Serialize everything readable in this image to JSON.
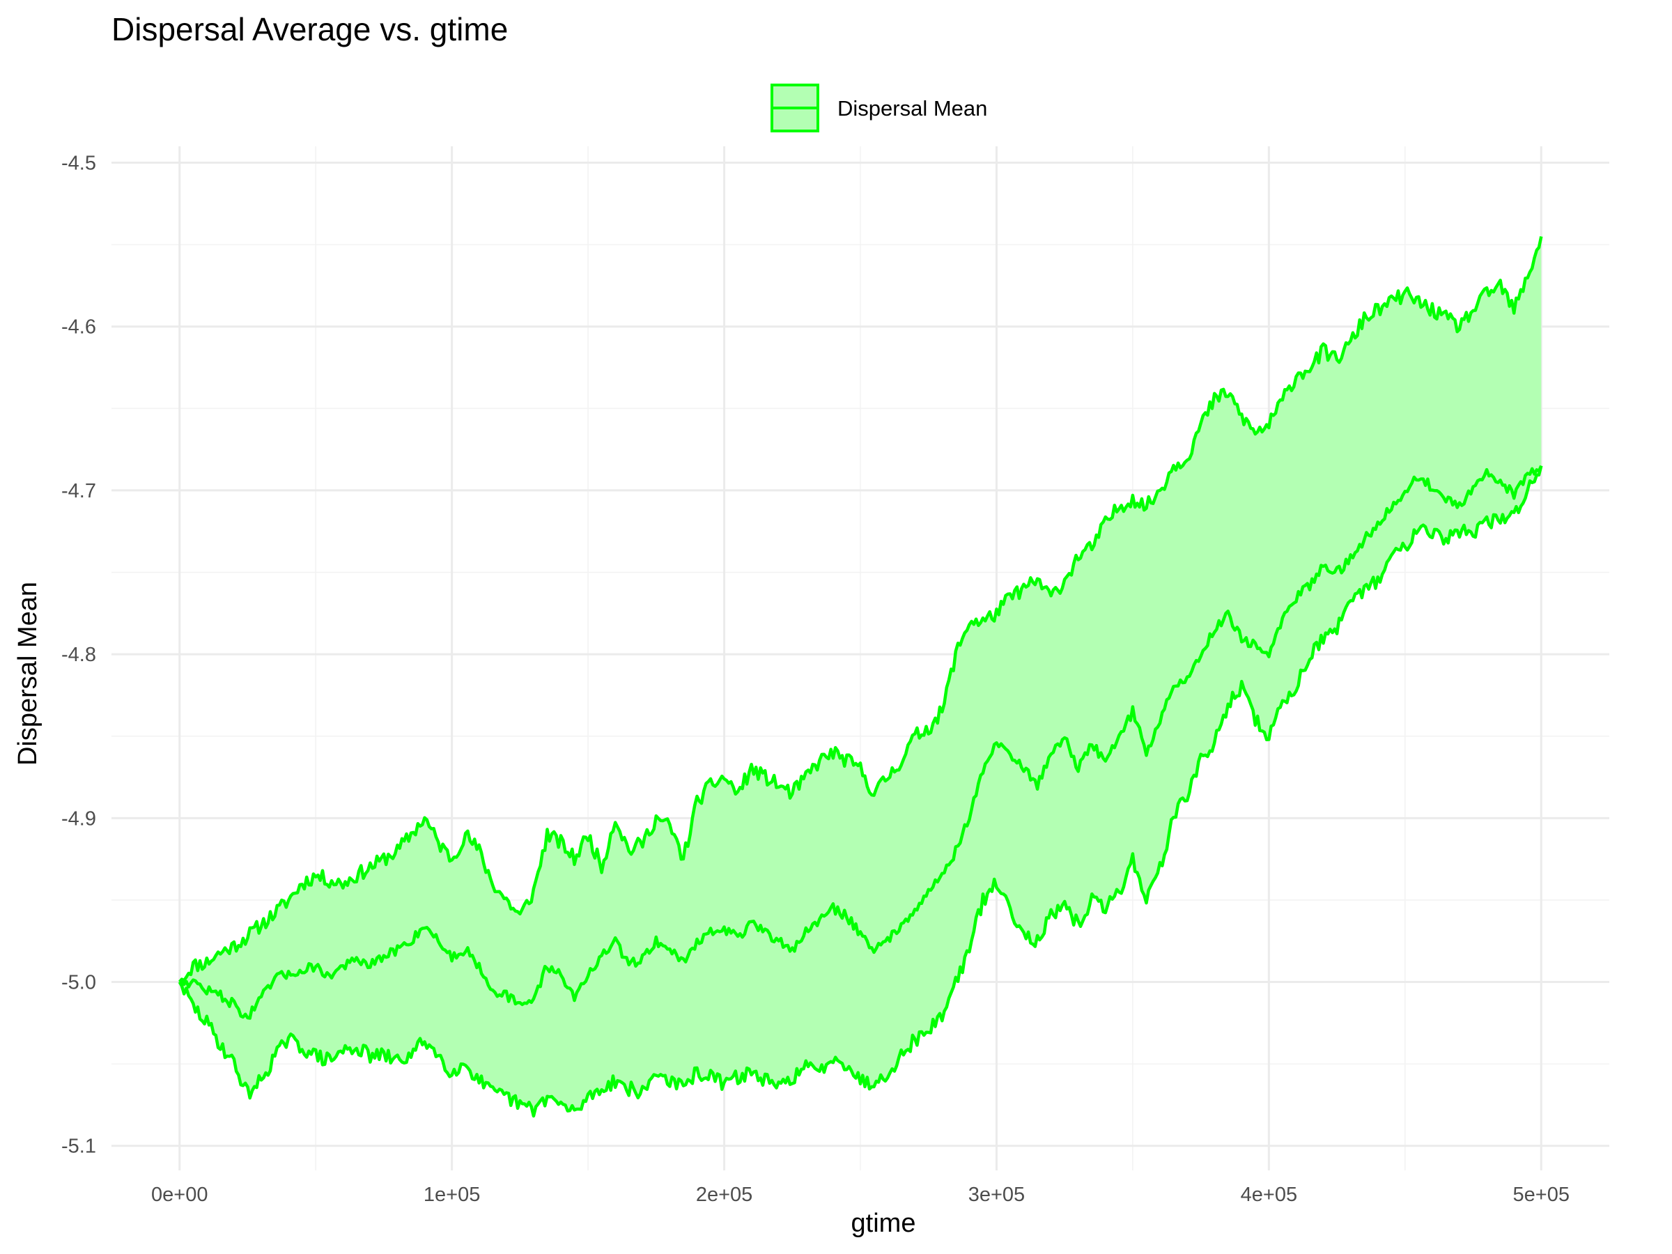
{
  "chart_data": {
    "type": "area",
    "title": "Dispersal Average vs. gtime",
    "xlabel": "gtime",
    "ylabel": "Dispersal Mean",
    "xlim": [
      -25000,
      525000
    ],
    "ylim": [
      -5.115,
      -4.49
    ],
    "x_ticks": [
      0,
      100000,
      200000,
      300000,
      400000,
      500000
    ],
    "x_tick_labels": [
      "0e+00",
      "1e+05",
      "2e+05",
      "3e+05",
      "4e+05",
      "5e+05"
    ],
    "y_ticks": [
      -5.1,
      -5.0,
      -4.9,
      -4.8,
      -4.7,
      -4.6,
      -4.5
    ],
    "y_tick_labels": [
      "-5.1",
      "-5.0",
      "-4.9",
      "-4.8",
      "-4.7",
      "-4.6",
      "-4.5"
    ],
    "grid": true,
    "legend_position": "top",
    "colors": {
      "line": "#00ff00",
      "fill": "#b3ffb3"
    },
    "series": [
      {
        "name": "Dispersal Mean",
        "x": [
          0,
          5000,
          10000,
          15000,
          20000,
          25000,
          30000,
          35000,
          40000,
          45000,
          50000,
          55000,
          60000,
          65000,
          70000,
          75000,
          80000,
          85000,
          90000,
          95000,
          100000,
          105000,
          110000,
          115000,
          120000,
          125000,
          130000,
          135000,
          140000,
          145000,
          150000,
          155000,
          160000,
          165000,
          170000,
          175000,
          180000,
          185000,
          190000,
          195000,
          200000,
          205000,
          210000,
          215000,
          220000,
          225000,
          230000,
          235000,
          240000,
          245000,
          250000,
          255000,
          260000,
          265000,
          270000,
          275000,
          280000,
          285000,
          290000,
          295000,
          300000,
          305000,
          310000,
          315000,
          320000,
          325000,
          330000,
          335000,
          340000,
          345000,
          350000,
          355000,
          360000,
          365000,
          370000,
          375000,
          380000,
          385000,
          390000,
          395000,
          400000,
          405000,
          410000,
          415000,
          420000,
          425000,
          430000,
          435000,
          440000,
          445000,
          450000,
          455000,
          460000,
          465000,
          470000,
          475000,
          480000,
          485000,
          490000,
          495000,
          500000
        ],
        "mean": [
          -5.0,
          -5.0,
          -5.005,
          -5.008,
          -5.014,
          -5.022,
          -5.01,
          -4.998,
          -4.995,
          -4.993,
          -4.99,
          -4.997,
          -4.99,
          -4.987,
          -4.99,
          -4.985,
          -4.98,
          -4.975,
          -4.965,
          -4.975,
          -4.985,
          -4.98,
          -4.99,
          -5.005,
          -5.008,
          -5.015,
          -5.01,
          -4.99,
          -4.995,
          -5.01,
          -4.995,
          -4.985,
          -4.975,
          -4.99,
          -4.985,
          -4.975,
          -4.98,
          -4.988,
          -4.975,
          -4.97,
          -4.968,
          -4.972,
          -4.965,
          -4.97,
          -4.975,
          -4.98,
          -4.97,
          -4.962,
          -4.955,
          -4.96,
          -4.97,
          -4.98,
          -4.975,
          -4.965,
          -4.955,
          -4.945,
          -4.935,
          -4.92,
          -4.9,
          -4.87,
          -4.855,
          -4.86,
          -4.87,
          -4.88,
          -4.86,
          -4.85,
          -4.87,
          -4.855,
          -4.865,
          -4.85,
          -4.835,
          -4.86,
          -4.84,
          -4.82,
          -4.815,
          -4.8,
          -4.785,
          -4.775,
          -4.79,
          -4.795,
          -4.8,
          -4.78,
          -4.765,
          -4.758,
          -4.745,
          -4.75,
          -4.742,
          -4.73,
          -4.72,
          -4.71,
          -4.7,
          -4.692,
          -4.698,
          -4.705,
          -4.71,
          -4.7,
          -4.69,
          -4.695,
          -4.702,
          -4.69,
          -4.685
        ],
        "upper": [
          -5.0,
          -4.99,
          -4.988,
          -4.982,
          -4.978,
          -4.972,
          -4.965,
          -4.958,
          -4.95,
          -4.94,
          -4.935,
          -4.938,
          -4.94,
          -4.935,
          -4.93,
          -4.925,
          -4.92,
          -4.91,
          -4.9,
          -4.915,
          -4.925,
          -4.91,
          -4.92,
          -4.94,
          -4.95,
          -4.96,
          -4.945,
          -4.91,
          -4.915,
          -4.925,
          -4.91,
          -4.93,
          -4.9,
          -4.92,
          -4.915,
          -4.9,
          -4.905,
          -4.925,
          -4.89,
          -4.88,
          -4.875,
          -4.885,
          -4.87,
          -4.875,
          -4.88,
          -4.885,
          -4.875,
          -4.865,
          -4.86,
          -4.865,
          -4.87,
          -4.885,
          -4.875,
          -4.865,
          -4.85,
          -4.845,
          -4.835,
          -4.8,
          -4.78,
          -4.78,
          -4.775,
          -4.765,
          -4.76,
          -4.755,
          -4.765,
          -4.755,
          -4.74,
          -4.735,
          -4.72,
          -4.71,
          -4.705,
          -4.71,
          -4.7,
          -4.685,
          -4.68,
          -4.66,
          -4.645,
          -4.64,
          -4.655,
          -4.665,
          -4.66,
          -4.645,
          -4.63,
          -4.625,
          -4.615,
          -4.62,
          -4.61,
          -4.595,
          -4.59,
          -4.585,
          -4.58,
          -4.585,
          -4.59,
          -4.595,
          -4.6,
          -4.59,
          -4.58,
          -4.575,
          -4.59,
          -4.57,
          -4.545
        ],
        "lower": [
          -5.0,
          -5.015,
          -5.025,
          -5.038,
          -5.05,
          -5.068,
          -5.06,
          -5.045,
          -5.035,
          -5.04,
          -5.045,
          -5.048,
          -5.042,
          -5.04,
          -5.045,
          -5.045,
          -5.048,
          -5.045,
          -5.035,
          -5.045,
          -5.055,
          -5.05,
          -5.06,
          -5.068,
          -5.07,
          -5.075,
          -5.078,
          -5.07,
          -5.075,
          -5.08,
          -5.07,
          -5.065,
          -5.06,
          -5.065,
          -5.068,
          -5.055,
          -5.06,
          -5.065,
          -5.055,
          -5.058,
          -5.062,
          -5.058,
          -5.055,
          -5.06,
          -5.065,
          -5.058,
          -5.052,
          -5.055,
          -5.045,
          -5.05,
          -5.06,
          -5.062,
          -5.055,
          -5.045,
          -5.035,
          -5.03,
          -5.02,
          -5.0,
          -4.98,
          -4.95,
          -4.94,
          -4.955,
          -4.97,
          -4.975,
          -4.96,
          -4.955,
          -4.965,
          -4.95,
          -4.955,
          -4.945,
          -4.925,
          -4.95,
          -4.93,
          -4.9,
          -4.885,
          -4.865,
          -4.855,
          -4.83,
          -4.82,
          -4.84,
          -4.85,
          -4.83,
          -4.82,
          -4.8,
          -4.79,
          -4.785,
          -4.77,
          -4.76,
          -4.755,
          -4.74,
          -4.735,
          -4.72,
          -4.725,
          -4.73,
          -4.725,
          -4.725,
          -4.72,
          -4.718,
          -4.715,
          -4.7,
          -4.685
        ]
      }
    ]
  }
}
